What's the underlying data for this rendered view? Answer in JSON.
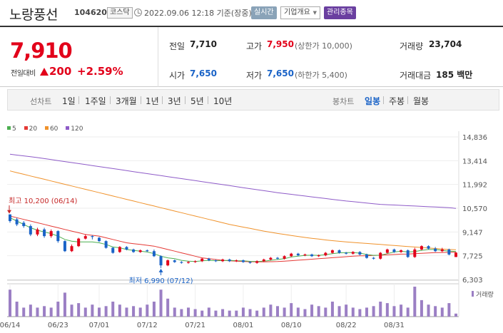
{
  "header": {
    "stock_name": "노랑풍선",
    "stock_code": "104620",
    "market": "코스닥",
    "datetime": "2022.09.06 12:18 기준(장중)",
    "realtime_label": "실시간",
    "company_label": "기업개요",
    "managed_label": "관리종목"
  },
  "summary": {
    "price": "7,910",
    "change_label": "전일대비",
    "change_value": "200",
    "change_pct": "+2.59%",
    "prev_label": "전일",
    "prev_value": "7,710",
    "high_label": "고가",
    "high_value": "7,950",
    "upper_limit": "(상한가 10,000)",
    "volume_label": "거래량",
    "volume_value": "23,704",
    "open_label": "시가",
    "open_value": "7,650",
    "low_label": "저가",
    "low_value": "7,650",
    "lower_limit": "(하한가 5,400)",
    "amount_label": "거래대금",
    "amount_value": "185 백만"
  },
  "period_bar": {
    "line_label": "선차트",
    "periods": [
      "1일",
      "1주일",
      "3개월",
      "1년",
      "3년",
      "5년",
      "10년"
    ],
    "candle_label": "봉차트",
    "candles": [
      "일봉",
      "주봉",
      "월봉"
    ],
    "active_candle": "일봉"
  },
  "colors": {
    "up": "#e2001a",
    "down": "#1a63c7",
    "ma5": "#4caf50",
    "ma20": "#e53935",
    "ma60": "#f0922b",
    "ma120": "#8e5bc8",
    "volume": "#9b7fc4"
  },
  "chart_data": {
    "type": "candlestick",
    "legend": [
      "5",
      "20",
      "60",
      "120"
    ],
    "y_ticks": [
      "14,836",
      "13,414",
      "11,992",
      "10,570",
      "9,147",
      "7,725",
      "6,303"
    ],
    "y_range": [
      6303,
      14836
    ],
    "x_ticks": [
      "06/14",
      "06/23",
      "07/01",
      "07/12",
      "07/21",
      "08/01",
      "08/10",
      "08/22",
      "08/31"
    ],
    "volume_label": "거래량",
    "max_annotation": "최고 10,200 (06/14)",
    "min_annotation": "최저 6,990 (07/12)",
    "candles": [
      {
        "o": 10200,
        "c": 9800,
        "h": 10200,
        "l": 9700
      },
      {
        "o": 9900,
        "c": 9600,
        "h": 10000,
        "l": 9500
      },
      {
        "o": 9700,
        "c": 9500,
        "h": 9800,
        "l": 9400
      },
      {
        "o": 9500,
        "c": 9000,
        "h": 9600,
        "l": 8900
      },
      {
        "o": 9000,
        "c": 9300,
        "h": 9400,
        "l": 8900
      },
      {
        "o": 9300,
        "c": 8900,
        "h": 9400,
        "l": 8800
      },
      {
        "o": 8900,
        "c": 9200,
        "h": 9300,
        "l": 8800
      },
      {
        "o": 9200,
        "c": 8600,
        "h": 9250,
        "l": 8500
      },
      {
        "o": 8600,
        "c": 8000,
        "h": 8650,
        "l": 7950
      },
      {
        "o": 8000,
        "c": 8300,
        "h": 8400,
        "l": 7950
      },
      {
        "o": 8300,
        "c": 8750,
        "h": 8800,
        "l": 8250
      },
      {
        "o": 8750,
        "c": 8900,
        "h": 9000,
        "l": 8700
      },
      {
        "o": 8900,
        "c": 8850,
        "h": 8950,
        "l": 8700
      },
      {
        "o": 8800,
        "c": 8600,
        "h": 8850,
        "l": 8550
      },
      {
        "o": 8600,
        "c": 8200,
        "h": 8650,
        "l": 8150
      },
      {
        "o": 8200,
        "c": 7900,
        "h": 8250,
        "l": 7850
      },
      {
        "o": 7950,
        "c": 8250,
        "h": 8300,
        "l": 7900
      },
      {
        "o": 8250,
        "c": 8100,
        "h": 8300,
        "l": 8050
      },
      {
        "o": 8100,
        "c": 7950,
        "h": 8150,
        "l": 7900
      },
      {
        "o": 7950,
        "c": 8050,
        "h": 8100,
        "l": 7900
      },
      {
        "o": 8050,
        "c": 8000,
        "h": 8100,
        "l": 7950
      },
      {
        "o": 8000,
        "c": 7700,
        "h": 8100,
        "l": 7650
      },
      {
        "o": 7700,
        "c": 7150,
        "h": 7750,
        "l": 6990
      },
      {
        "o": 7150,
        "c": 7450,
        "h": 7500,
        "l": 7100
      },
      {
        "o": 7450,
        "c": 7350,
        "h": 7500,
        "l": 7300
      },
      {
        "o": 7350,
        "c": 7300,
        "h": 7400,
        "l": 7250
      },
      {
        "o": 7300,
        "c": 7350,
        "h": 7400,
        "l": 7250
      },
      {
        "o": 7350,
        "c": 7400,
        "h": 7450,
        "l": 7300
      },
      {
        "o": 7400,
        "c": 7550,
        "h": 7600,
        "l": 7350
      },
      {
        "o": 7550,
        "c": 7450,
        "h": 7600,
        "l": 7400
      },
      {
        "o": 7450,
        "c": 7400,
        "h": 7500,
        "l": 7350
      },
      {
        "o": 7400,
        "c": 7500,
        "h": 7550,
        "l": 7350
      },
      {
        "o": 7500,
        "c": 7400,
        "h": 7550,
        "l": 7350
      },
      {
        "o": 7400,
        "c": 7450,
        "h": 7500,
        "l": 7350
      },
      {
        "o": 7450,
        "c": 7350,
        "h": 7500,
        "l": 7300
      },
      {
        "o": 7350,
        "c": 7300,
        "h": 7400,
        "l": 7250
      },
      {
        "o": 7300,
        "c": 7400,
        "h": 7450,
        "l": 7250
      },
      {
        "o": 7400,
        "c": 7500,
        "h": 7550,
        "l": 7350
      },
      {
        "o": 7500,
        "c": 7600,
        "h": 7650,
        "l": 7450
      },
      {
        "o": 7600,
        "c": 7550,
        "h": 7650,
        "l": 7500
      },
      {
        "o": 7550,
        "c": 7700,
        "h": 7750,
        "l": 7500
      },
      {
        "o": 7700,
        "c": 7850,
        "h": 7900,
        "l": 7650
      },
      {
        "o": 7850,
        "c": 7750,
        "h": 7900,
        "l": 7700
      },
      {
        "o": 7750,
        "c": 7800,
        "h": 7850,
        "l": 7700
      },
      {
        "o": 7800,
        "c": 7700,
        "h": 7850,
        "l": 7650
      },
      {
        "o": 7700,
        "c": 7750,
        "h": 7800,
        "l": 7650
      },
      {
        "o": 7750,
        "c": 7900,
        "h": 7950,
        "l": 7700
      },
      {
        "o": 7900,
        "c": 8050,
        "h": 8100,
        "l": 7850
      },
      {
        "o": 8050,
        "c": 7900,
        "h": 8100,
        "l": 7850
      },
      {
        "o": 7900,
        "c": 7850,
        "h": 7950,
        "l": 7800
      },
      {
        "o": 7850,
        "c": 7950,
        "h": 8000,
        "l": 7800
      },
      {
        "o": 7950,
        "c": 7800,
        "h": 8000,
        "l": 7750
      },
      {
        "o": 7800,
        "c": 7600,
        "h": 7850,
        "l": 7550
      },
      {
        "o": 7600,
        "c": 7550,
        "h": 7650,
        "l": 7500
      },
      {
        "o": 7550,
        "c": 7900,
        "h": 7950,
        "l": 7500
      },
      {
        "o": 7900,
        "c": 8100,
        "h": 8150,
        "l": 7850
      },
      {
        "o": 8100,
        "c": 7950,
        "h": 8150,
        "l": 7900
      },
      {
        "o": 7950,
        "c": 8050,
        "h": 8100,
        "l": 7900
      },
      {
        "o": 8050,
        "c": 7650,
        "h": 8100,
        "l": 7600
      },
      {
        "o": 7650,
        "c": 8100,
        "h": 8200,
        "l": 7600
      },
      {
        "o": 8100,
        "c": 8300,
        "h": 8350,
        "l": 8050
      },
      {
        "o": 8300,
        "c": 8150,
        "h": 8350,
        "l": 8100
      },
      {
        "o": 8150,
        "c": 8000,
        "h": 8250,
        "l": 7950
      },
      {
        "o": 8000,
        "c": 8100,
        "h": 8200,
        "l": 7950
      },
      {
        "o": 8100,
        "c": 7800,
        "h": 8150,
        "l": 7750
      },
      {
        "o": 7650,
        "c": 7910,
        "h": 7950,
        "l": 7650
      }
    ],
    "ma5": [
      10000,
      9800,
      9600,
      9400,
      9250,
      9150,
      9050,
      8900,
      8700,
      8600,
      8550,
      8550,
      8550,
      8500,
      8400,
      8250,
      8200,
      8100,
      8050,
      8000,
      7950,
      7850,
      7700,
      7600,
      7550,
      7450,
      7400,
      7380,
      7420,
      7450,
      7430,
      7440,
      7450,
      7430,
      7420,
      7390,
      7380,
      7400,
      7450,
      7500,
      7550,
      7650,
      7700,
      7750,
      7760,
      7750,
      7790,
      7850,
      7900,
      7910,
      7920,
      7880,
      7800,
      7750,
      7760,
      7850,
      7950,
      8000,
      7950,
      7980,
      8050,
      8100,
      8100,
      8050,
      8000,
      7980
    ],
    "ma20": [
      10100,
      10000,
      9900,
      9800,
      9700,
      9600,
      9500,
      9400,
      9300,
      9200,
      9100,
      9000,
      8950,
      8900,
      8800,
      8700,
      8600,
      8500,
      8450,
      8400,
      8350,
      8300,
      8200,
      8100,
      8000,
      7900,
      7800,
      7700,
      7600,
      7550,
      7500,
      7450,
      7420,
      7400,
      7380,
      7370,
      7360,
      7360,
      7370,
      7380,
      7400,
      7430,
      7460,
      7490,
      7520,
      7550,
      7580,
      7610,
      7640,
      7670,
      7700,
      7720,
      7730,
      7740,
      7760,
      7780,
      7800,
      7820,
      7830,
      7850,
      7870,
      7890,
      7910,
      7920,
      7930,
      7935
    ],
    "ma60": [
      12800,
      12700,
      12600,
      12500,
      12400,
      12300,
      12200,
      12100,
      12000,
      11900,
      11800,
      11700,
      11600,
      11500,
      11400,
      11300,
      11200,
      11100,
      11000,
      10900,
      10800,
      10700,
      10600,
      10500,
      10400,
      10300,
      10200,
      10100,
      10000,
      9900,
      9800,
      9700,
      9600,
      9520,
      9440,
      9360,
      9280,
      9200,
      9130,
      9060,
      9000,
      8940,
      8880,
      8820,
      8770,
      8720,
      8670,
      8630,
      8590,
      8550,
      8520,
      8490,
      8460,
      8430,
      8400,
      8370,
      8340,
      8310,
      8280,
      8250,
      8220,
      8190,
      8160,
      8130,
      8100,
      8080
    ],
    "ma120": [
      13800,
      13750,
      13700,
      13650,
      13600,
      13540,
      13480,
      13420,
      13360,
      13300,
      13240,
      13180,
      13120,
      13060,
      13000,
      12940,
      12880,
      12820,
      12760,
      12700,
      12640,
      12580,
      12520,
      12460,
      12400,
      12340,
      12280,
      12220,
      12160,
      12100,
      12040,
      11980,
      11920,
      11860,
      11800,
      11740,
      11680,
      11620,
      11560,
      11500,
      11450,
      11400,
      11350,
      11300,
      11250,
      11200,
      11150,
      11100,
      11050,
      11000,
      10960,
      10920,
      10880,
      10840,
      10800,
      10780,
      10760,
      10740,
      10720,
      10700,
      10680,
      10660,
      10640,
      10620,
      10600,
      10560
    ],
    "volumes": [
      0.9,
      0.5,
      0.3,
      0.4,
      0.3,
      0.35,
      0.3,
      0.5,
      0.8,
      0.4,
      0.45,
      0.3,
      0.4,
      0.3,
      0.35,
      0.5,
      0.4,
      0.3,
      0.35,
      0.3,
      0.4,
      0.5,
      0.9,
      0.6,
      0.3,
      0.25,
      0.3,
      0.25,
      0.2,
      0.3,
      0.2,
      0.25,
      0.2,
      0.2,
      0.3,
      0.25,
      0.2,
      0.3,
      0.4,
      0.35,
      0.3,
      0.45,
      0.3,
      0.25,
      0.4,
      0.35,
      0.3,
      0.5,
      0.35,
      0.4,
      0.3,
      0.25,
      0.3,
      0.35,
      0.5,
      0.45,
      0.35,
      0.4,
      0.3,
      1.0,
      0.55,
      0.4,
      0.35,
      0.3,
      0.45,
      0.1
    ]
  }
}
